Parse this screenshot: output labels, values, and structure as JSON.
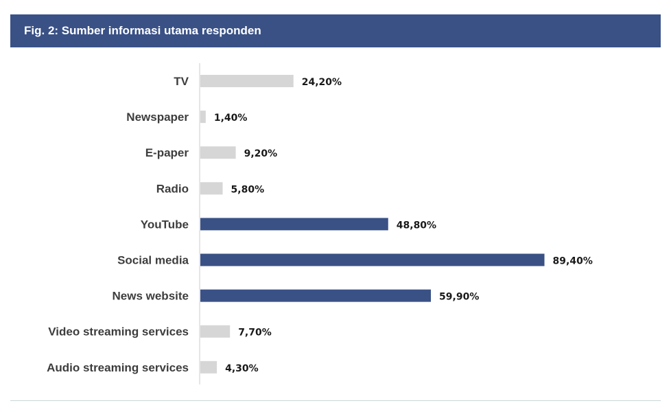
{
  "header": {
    "title": "Fig. 2: Sumber informasi utama responden"
  },
  "colors": {
    "highlight": "#3a5186",
    "muted": "#d6d6d6",
    "axis": "#cccccc",
    "text": "#1a1a1a",
    "label": "#3d3d3d"
  },
  "chart_data": {
    "type": "bar",
    "orientation": "horizontal",
    "categories": [
      "TV",
      "Newspaper",
      "E-paper",
      "Radio",
      "YouTube",
      "Social media",
      "News website",
      "Video streaming services",
      "Audio streaming services"
    ],
    "values": [
      24.2,
      1.4,
      9.2,
      5.8,
      48.8,
      89.4,
      59.9,
      7.7,
      4.3
    ],
    "value_labels": [
      "24,20%",
      "1,40%",
      "9,20%",
      "5,80%",
      "48,80%",
      "89,40%",
      "59,90%",
      "7,70%",
      "4,30%"
    ],
    "highlighted": [
      false,
      false,
      false,
      false,
      true,
      true,
      true,
      false,
      false
    ],
    "xlim": [
      0,
      100
    ],
    "grid": false,
    "legend": "none"
  }
}
